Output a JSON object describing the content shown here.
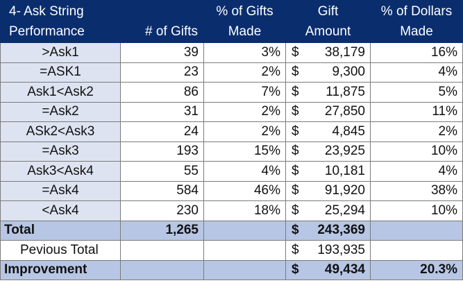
{
  "header": {
    "col1_line1": "4- Ask String",
    "col1_line2": "Performance",
    "col2": "# of Gifts",
    "col3_line1": "% of Gifts",
    "col3_line2": "Made",
    "col4_line1": "Gift",
    "col4_line2": "Amount",
    "col5_line1": "% of Dollars",
    "col5_line2": "Made"
  },
  "currency_symbol": "$",
  "rows": [
    {
      "label": ">Ask1",
      "gifts": "39",
      "pct_gifts": "3%",
      "amount": "38,179",
      "pct_dollars": "16%"
    },
    {
      "label": "=ASK1",
      "gifts": "23",
      "pct_gifts": "2%",
      "amount": "9,300",
      "pct_dollars": "4%"
    },
    {
      "label": "Ask1<Ask2",
      "gifts": "86",
      "pct_gifts": "7%",
      "amount": "11,875",
      "pct_dollars": "5%"
    },
    {
      "label": "=Ask2",
      "gifts": "31",
      "pct_gifts": "2%",
      "amount": "27,850",
      "pct_dollars": "11%"
    },
    {
      "label": "ASk2<Ask3",
      "gifts": "24",
      "pct_gifts": "2%",
      "amount": "4,845",
      "pct_dollars": "2%"
    },
    {
      "label": "=Ask3",
      "gifts": "193",
      "pct_gifts": "15%",
      "amount": "23,925",
      "pct_dollars": "10%"
    },
    {
      "label": "Ask3<Ask4",
      "gifts": "55",
      "pct_gifts": "4%",
      "amount": "10,181",
      "pct_dollars": "4%"
    },
    {
      "label": "=Ask4",
      "gifts": "584",
      "pct_gifts": "46%",
      "amount": "91,920",
      "pct_dollars": "38%"
    },
    {
      "label": "<Ask4",
      "gifts": "230",
      "pct_gifts": "18%",
      "amount": "25,294",
      "pct_dollars": "10%"
    }
  ],
  "total": {
    "label": "Total",
    "gifts": "1,265",
    "amount": "243,369"
  },
  "previous_total": {
    "label": "Pevious Total",
    "amount": "193,935"
  },
  "improvement": {
    "label": "Improvement",
    "amount": "49,434",
    "pct_dollars": "20.3%"
  }
}
